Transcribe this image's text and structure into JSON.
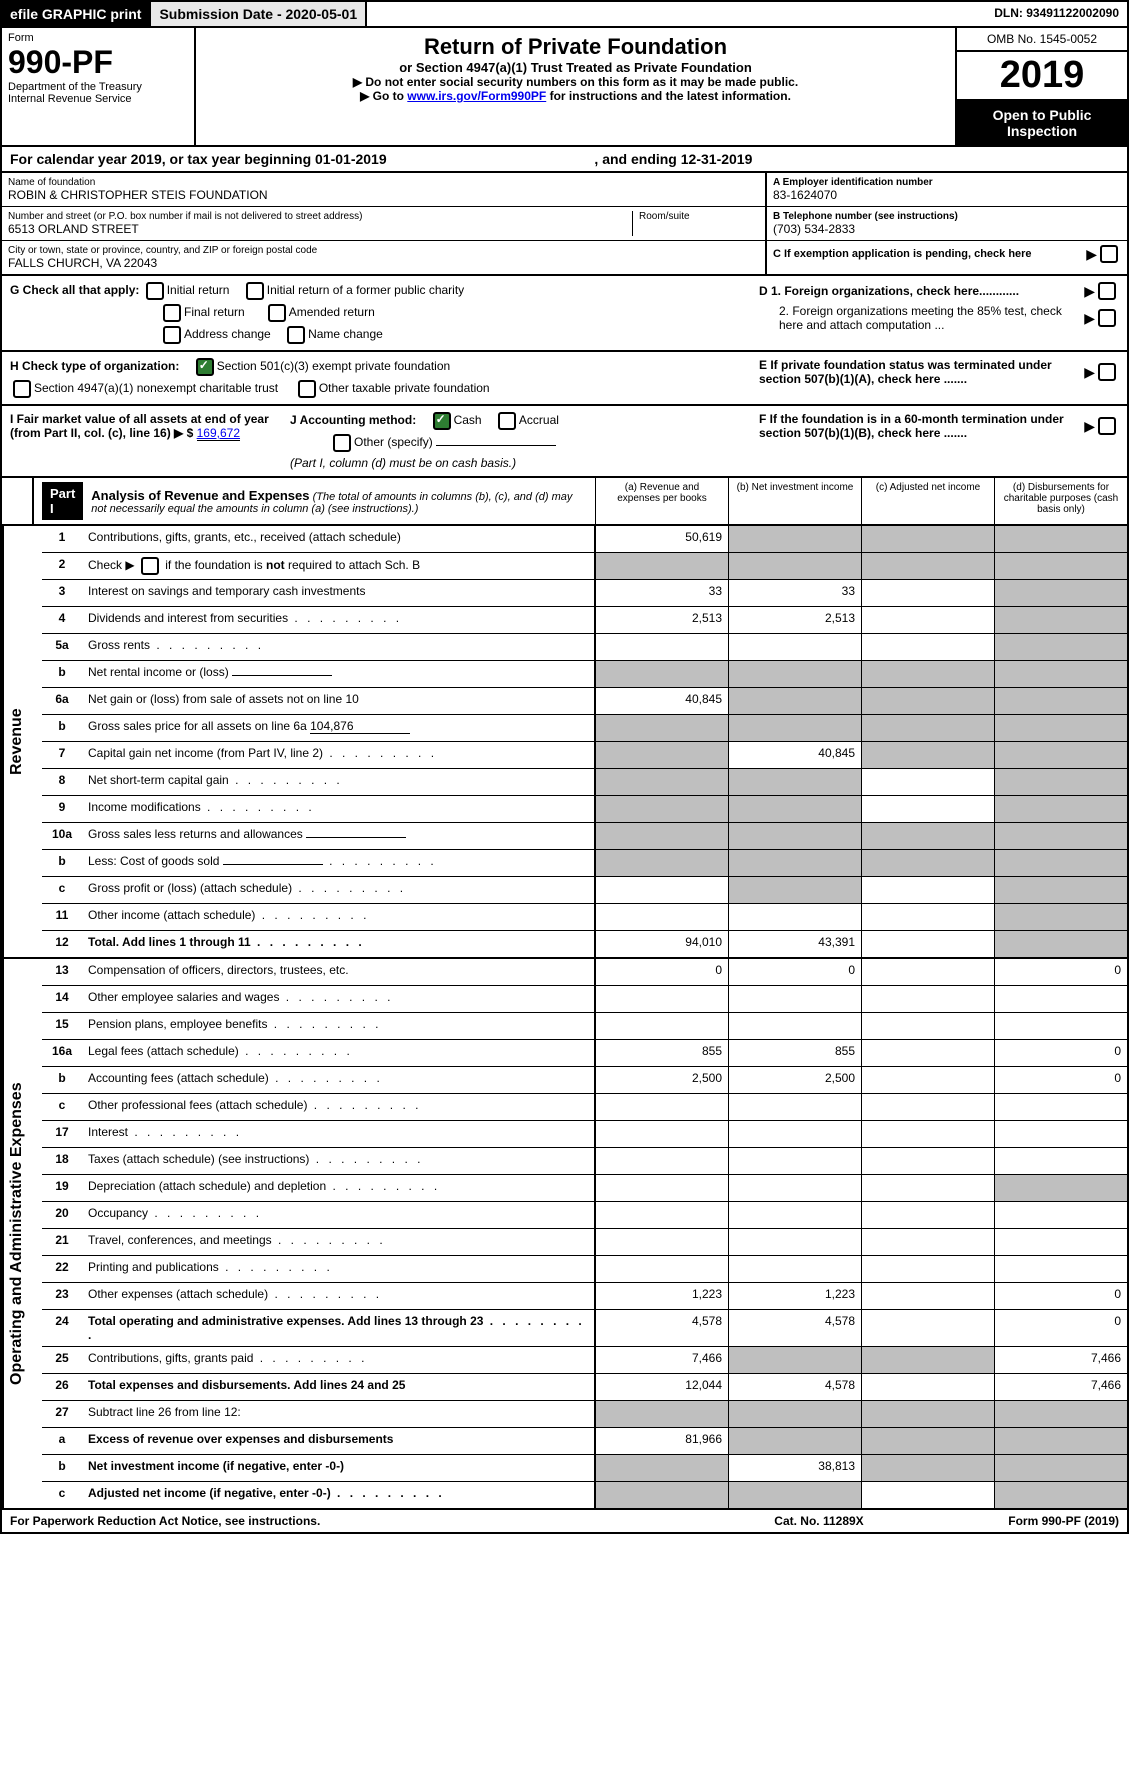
{
  "top_bar": {
    "efile": "efile GRAPHIC print",
    "submission": "Submission Date - 2020-05-01",
    "dln": "DLN: 93491122002090"
  },
  "header": {
    "form_label": "Form",
    "form_num": "990-PF",
    "dept": "Department of the Treasury",
    "irs": "Internal Revenue Service",
    "title": "Return of Private Foundation",
    "subtitle": "or Section 4947(a)(1) Trust Treated as Private Foundation",
    "instr1": "▶ Do not enter social security numbers on this form as it may be made public.",
    "instr2_pre": "▶ Go to ",
    "instr2_link": "www.irs.gov/Form990PF",
    "instr2_post": " for instructions and the latest information.",
    "omb": "OMB No. 1545-0052",
    "year": "2019",
    "open": "Open to Public Inspection"
  },
  "cal_year": {
    "pre": "For calendar year 2019, or tax year beginning ",
    "begin": "01-01-2019",
    "mid": " , and ending ",
    "end": "12-31-2019"
  },
  "info": {
    "name_label": "Name of foundation",
    "name": "ROBIN & CHRISTOPHER STEIS FOUNDATION",
    "addr_label": "Number and street (or P.O. box number if mail is not delivered to street address)",
    "room_label": "Room/suite",
    "addr": "6513 ORLAND STREET",
    "city_label": "City or town, state or province, country, and ZIP or foreign postal code",
    "city": "FALLS CHURCH, VA  22043",
    "ein_label": "A Employer identification number",
    "ein": "83-1624070",
    "phone_label": "B Telephone number (see instructions)",
    "phone": "(703) 534-2833",
    "c_label": "C If exemption application is pending, check here"
  },
  "checks": {
    "g_label": "G Check all that apply:",
    "g1": "Initial return",
    "g2": "Initial return of a former public charity",
    "g3": "Final return",
    "g4": "Amended return",
    "g5": "Address change",
    "g6": "Name change",
    "d1": "D 1. Foreign organizations, check here............",
    "d2": "2. Foreign organizations meeting the 85% test, check here and attach computation ...",
    "h_label": "H Check type of organization:",
    "h1": "Section 501(c)(3) exempt private foundation",
    "h2": "Section 4947(a)(1) nonexempt charitable trust",
    "h3": "Other taxable private foundation",
    "e_label": "E If private foundation status was terminated under section 507(b)(1)(A), check here .......",
    "i_label": "I Fair market value of all assets at end of year (from Part II, col. (c), line 16) ▶ $",
    "i_val": "169,672",
    "j_label": "J Accounting method:",
    "j1": "Cash",
    "j2": "Accrual",
    "j3": "Other (specify)",
    "j_note": "(Part I, column (d) must be on cash basis.)",
    "f_label": "F If the foundation is in a 60-month termination under section 507(b)(1)(B), check here ......."
  },
  "part1": {
    "badge": "Part I",
    "title": "Analysis of Revenue and Expenses",
    "note": "(The total of amounts in columns (b), (c), and (d) may not necessarily equal the amounts in column (a) (see instructions).)",
    "col_a": "(a) Revenue and expenses per books",
    "col_b": "(b) Net investment income",
    "col_c": "(c) Adjusted net income",
    "col_d": "(d) Disbursements for charitable purposes (cash basis only)"
  },
  "side_revenue": "Revenue",
  "side_expenses": "Operating and Administrative Expenses",
  "revenue_rows": [
    {
      "n": "1",
      "label": "Contributions, gifts, grants, etc., received (attach schedule)",
      "a": "50,619",
      "b": "",
      "c": "",
      "d": "",
      "grey_b": true,
      "grey_c": true,
      "grey_d": true
    },
    {
      "n": "2",
      "label": "Check ▶ ☐ if the foundation is not required to attach Sch. B",
      "a": "",
      "b": "",
      "c": "",
      "d": "",
      "grey_a": true,
      "grey_b": true,
      "grey_c": true,
      "grey_d": true,
      "bold_not": true
    },
    {
      "n": "3",
      "label": "Interest on savings and temporary cash investments",
      "a": "33",
      "b": "33",
      "c": "",
      "d": "",
      "grey_d": true
    },
    {
      "n": "4",
      "label": "Dividends and interest from securities",
      "a": "2,513",
      "b": "2,513",
      "c": "",
      "d": "",
      "dots": true,
      "grey_d": true
    },
    {
      "n": "5a",
      "label": "Gross rents",
      "a": "",
      "b": "",
      "c": "",
      "d": "",
      "dots": true,
      "grey_d": true
    },
    {
      "n": "b",
      "label": "Net rental income or (loss)",
      "a": "",
      "b": "",
      "c": "",
      "d": "",
      "grey_a": true,
      "grey_b": true,
      "grey_c": true,
      "grey_d": true,
      "inline": true
    },
    {
      "n": "6a",
      "label": "Net gain or (loss) from sale of assets not on line 10",
      "a": "40,845",
      "b": "",
      "c": "",
      "d": "",
      "grey_b": true,
      "grey_c": true,
      "grey_d": true
    },
    {
      "n": "b",
      "label": "Gross sales price for all assets on line 6a",
      "a": "",
      "b": "",
      "c": "",
      "d": "",
      "grey_a": true,
      "grey_b": true,
      "grey_c": true,
      "grey_d": true,
      "inline": true,
      "inline_val": "104,876"
    },
    {
      "n": "7",
      "label": "Capital gain net income (from Part IV, line 2)",
      "a": "",
      "b": "40,845",
      "c": "",
      "d": "",
      "dots": true,
      "grey_a": true,
      "grey_c": true,
      "grey_d": true
    },
    {
      "n": "8",
      "label": "Net short-term capital gain",
      "a": "",
      "b": "",
      "c": "",
      "d": "",
      "dots": true,
      "grey_a": true,
      "grey_b": true,
      "grey_d": true
    },
    {
      "n": "9",
      "label": "Income modifications",
      "a": "",
      "b": "",
      "c": "",
      "d": "",
      "dots": true,
      "grey_a": true,
      "grey_b": true,
      "grey_d": true
    },
    {
      "n": "10a",
      "label": "Gross sales less returns and allowances",
      "a": "",
      "b": "",
      "c": "",
      "d": "",
      "grey_a": true,
      "grey_b": true,
      "grey_c": true,
      "grey_d": true,
      "inline": true
    },
    {
      "n": "b",
      "label": "Less: Cost of goods sold",
      "a": "",
      "b": "",
      "c": "",
      "d": "",
      "dots": true,
      "grey_a": true,
      "grey_b": true,
      "grey_c": true,
      "grey_d": true,
      "inline": true
    },
    {
      "n": "c",
      "label": "Gross profit or (loss) (attach schedule)",
      "a": "",
      "b": "",
      "c": "",
      "d": "",
      "dots": true,
      "grey_b": true,
      "grey_d": true
    },
    {
      "n": "11",
      "label": "Other income (attach schedule)",
      "a": "",
      "b": "",
      "c": "",
      "d": "",
      "dots": true,
      "grey_d": true
    },
    {
      "n": "12",
      "label": "Total. Add lines 1 through 11",
      "a": "94,010",
      "b": "43,391",
      "c": "",
      "d": "",
      "dots": true,
      "bold": true,
      "grey_d": true
    }
  ],
  "expense_rows": [
    {
      "n": "13",
      "label": "Compensation of officers, directors, trustees, etc.",
      "a": "0",
      "b": "0",
      "c": "",
      "d": "0"
    },
    {
      "n": "14",
      "label": "Other employee salaries and wages",
      "a": "",
      "b": "",
      "c": "",
      "d": "",
      "dots": true
    },
    {
      "n": "15",
      "label": "Pension plans, employee benefits",
      "a": "",
      "b": "",
      "c": "",
      "d": "",
      "dots": true
    },
    {
      "n": "16a",
      "label": "Legal fees (attach schedule)",
      "a": "855",
      "b": "855",
      "c": "",
      "d": "0",
      "dots": true
    },
    {
      "n": "b",
      "label": "Accounting fees (attach schedule)",
      "a": "2,500",
      "b": "2,500",
      "c": "",
      "d": "0",
      "dots": true
    },
    {
      "n": "c",
      "label": "Other professional fees (attach schedule)",
      "a": "",
      "b": "",
      "c": "",
      "d": "",
      "dots": true
    },
    {
      "n": "17",
      "label": "Interest",
      "a": "",
      "b": "",
      "c": "",
      "d": "",
      "dots": true
    },
    {
      "n": "18",
      "label": "Taxes (attach schedule) (see instructions)",
      "a": "",
      "b": "",
      "c": "",
      "d": "",
      "dots": true
    },
    {
      "n": "19",
      "label": "Depreciation (attach schedule) and depletion",
      "a": "",
      "b": "",
      "c": "",
      "d": "",
      "dots": true,
      "grey_d": true
    },
    {
      "n": "20",
      "label": "Occupancy",
      "a": "",
      "b": "",
      "c": "",
      "d": "",
      "dots": true
    },
    {
      "n": "21",
      "label": "Travel, conferences, and meetings",
      "a": "",
      "b": "",
      "c": "",
      "d": "",
      "dots": true
    },
    {
      "n": "22",
      "label": "Printing and publications",
      "a": "",
      "b": "",
      "c": "",
      "d": "",
      "dots": true
    },
    {
      "n": "23",
      "label": "Other expenses (attach schedule)",
      "a": "1,223",
      "b": "1,223",
      "c": "",
      "d": "0",
      "dots": true
    },
    {
      "n": "24",
      "label": "Total operating and administrative expenses. Add lines 13 through 23",
      "a": "4,578",
      "b": "4,578",
      "c": "",
      "d": "0",
      "dots": true,
      "bold": true
    },
    {
      "n": "25",
      "label": "Contributions, gifts, grants paid",
      "a": "7,466",
      "b": "",
      "c": "",
      "d": "7,466",
      "dots": true,
      "grey_b": true,
      "grey_c": true
    },
    {
      "n": "26",
      "label": "Total expenses and disbursements. Add lines 24 and 25",
      "a": "12,044",
      "b": "4,578",
      "c": "",
      "d": "7,466",
      "bold": true
    },
    {
      "n": "27",
      "label": "Subtract line 26 from line 12:",
      "a": "",
      "b": "",
      "c": "",
      "d": "",
      "grey_a": true,
      "grey_b": true,
      "grey_c": true,
      "grey_d": true
    },
    {
      "n": "a",
      "label": "Excess of revenue over expenses and disbursements",
      "a": "81,966",
      "b": "",
      "c": "",
      "d": "",
      "bold": true,
      "grey_b": true,
      "grey_c": true,
      "grey_d": true
    },
    {
      "n": "b",
      "label": "Net investment income (if negative, enter -0-)",
      "a": "",
      "b": "38,813",
      "c": "",
      "d": "",
      "bold": true,
      "grey_a": true,
      "grey_c": true,
      "grey_d": true
    },
    {
      "n": "c",
      "label": "Adjusted net income (if negative, enter -0-)",
      "a": "",
      "b": "",
      "c": "",
      "d": "",
      "bold": true,
      "dots": true,
      "grey_a": true,
      "grey_b": true,
      "grey_d": true
    }
  ],
  "footer": {
    "left": "For Paperwork Reduction Act Notice, see instructions.",
    "mid": "Cat. No. 11289X",
    "right": "Form 990-PF (2019)"
  },
  "style": {
    "grey_cell": "#bfbfbf",
    "black": "#000000",
    "white": "#ffffff",
    "check_green": "#2e7d32",
    "link_blue": "#0000ee"
  }
}
